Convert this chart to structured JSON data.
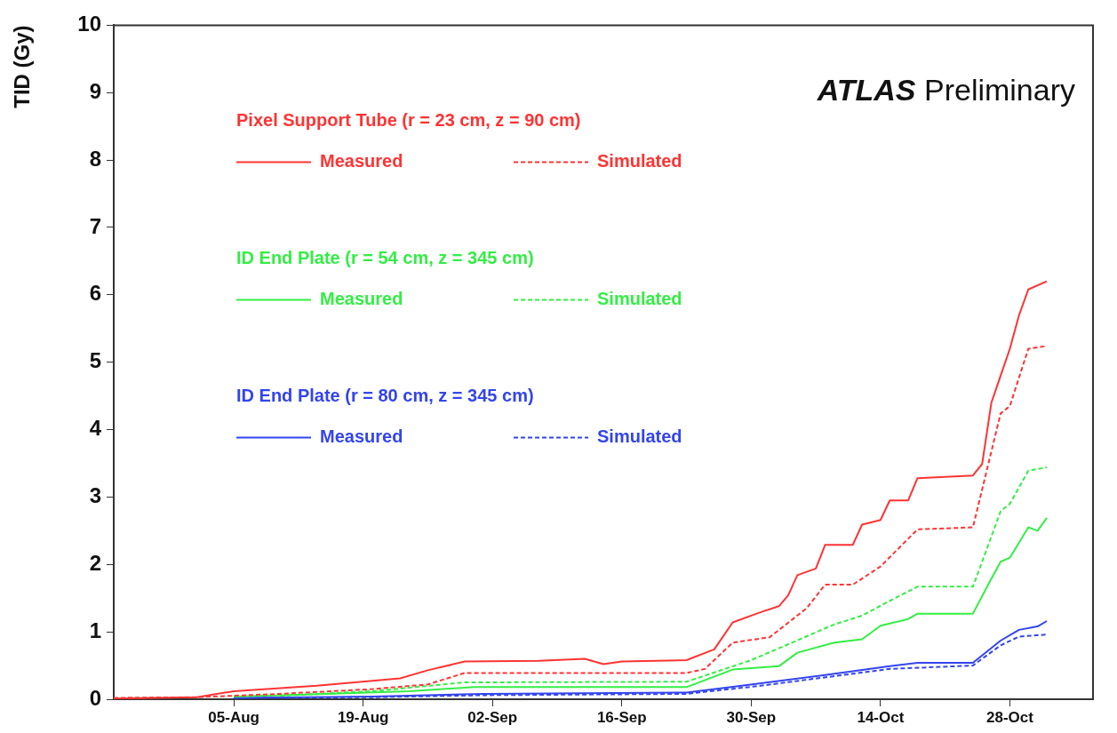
{
  "chart_data": {
    "type": "line",
    "ylabel": "TID (Gy)",
    "xlim": [
      "--07-23",
      "--11-06"
    ],
    "xticks": [
      {
        "value": "--08-05",
        "label": "05-Aug"
      },
      {
        "value": "--08-19",
        "label": "19-Aug"
      },
      {
        "value": "--09-02",
        "label": "02-Sep"
      },
      {
        "value": "--09-16",
        "label": "16-Sep"
      },
      {
        "value": "--09-30",
        "label": "30-Sep"
      },
      {
        "value": "--10-14",
        "label": "14-Oct"
      },
      {
        "value": "--10-28",
        "label": "28-Oct"
      }
    ],
    "ylim": [
      0,
      10
    ],
    "yticks": [
      0,
      1,
      2,
      3,
      4,
      5,
      6,
      7,
      8,
      9,
      10
    ],
    "grid": false,
    "legend": "top left",
    "marker": "none",
    "annotations": [
      "ATLAS Preliminary",
      "Pixel Support Tube (r = 23 cm, z = 90 cm)",
      "ID End Plate (r = 54 cm, z = 345 cm)",
      "ID End Plate (r = 80 cm, z = 345 cm)"
    ],
    "series": [
      {
        "name": "Measured",
        "color": "#ff3333",
        "line_style": "solid",
        "x": [
          "--07-23",
          "--08-01",
          "--08-05",
          "--08-14",
          "--08-23",
          "--08-26",
          "--08-30",
          "--09-07",
          "--09-12",
          "--09-14",
          "--09-16",
          "--09-23",
          "--09-26",
          "--09-28",
          "--10-01",
          "--10-03",
          "--10-04",
          "--10-05",
          "--10-07",
          "--10-08",
          "--10-11",
          "--10-12",
          "--10-14",
          "--10-15",
          "--10-17",
          "--10-18",
          "--10-24",
          "--10-25",
          "--10-26",
          "--10-27",
          "--10-28",
          "--10-29",
          "--10-30",
          "--11-01"
        ],
        "values": [
          0.01,
          0.03,
          0.12,
          0.2,
          0.31,
          0.43,
          0.56,
          0.57,
          0.6,
          0.52,
          0.56,
          0.58,
          0.74,
          1.14,
          1.29,
          1.38,
          1.54,
          1.84,
          1.94,
          2.29,
          2.29,
          2.59,
          2.66,
          2.95,
          2.95,
          3.28,
          3.32,
          3.49,
          4.4,
          4.8,
          5.2,
          5.7,
          6.08,
          6.2
        ]
      },
      {
        "name": "Simulated",
        "color": "#ff3333",
        "line_style": "dashed",
        "x": [
          "--07-23",
          "--08-01",
          "--08-10",
          "--08-20",
          "--08-26",
          "--08-30",
          "--09-23",
          "--09-25",
          "--09-28",
          "--10-02",
          "--10-06",
          "--10-08",
          "--10-11",
          "--10-14",
          "--10-18",
          "--10-24",
          "--10-27",
          "--10-28",
          "--10-30",
          "--11-01"
        ],
        "values": [
          0.02,
          0.03,
          0.08,
          0.15,
          0.22,
          0.39,
          0.39,
          0.45,
          0.84,
          0.92,
          1.35,
          1.7,
          1.7,
          1.97,
          2.52,
          2.55,
          4.24,
          4.35,
          5.2,
          5.24
        ]
      },
      {
        "name": "Measured",
        "color": "#33ee44",
        "line_style": "solid",
        "x": [
          "--08-05",
          "--08-15",
          "--08-24",
          "--08-31",
          "--09-23",
          "--09-28",
          "--10-03",
          "--10-05",
          "--10-09",
          "--10-12",
          "--10-14",
          "--10-17",
          "--10-18",
          "--10-24",
          "--10-26",
          "--10-27",
          "--10-28",
          "--10-30",
          "--10-31",
          "--11-01"
        ],
        "values": [
          0.04,
          0.08,
          0.12,
          0.18,
          0.18,
          0.44,
          0.49,
          0.69,
          0.84,
          0.89,
          1.09,
          1.19,
          1.27,
          1.27,
          1.79,
          2.04,
          2.1,
          2.55,
          2.5,
          2.69
        ]
      },
      {
        "name": "Simulated",
        "color": "#33ee44",
        "line_style": "dashed",
        "x": [
          "--08-10",
          "--08-20",
          "--08-30",
          "--09-23",
          "--09-30",
          "--10-09",
          "--10-12",
          "--10-15",
          "--10-18",
          "--10-24",
          "--10-25",
          "--10-27",
          "--10-28",
          "--10-30",
          "--11-01"
        ],
        "values": [
          0.05,
          0.12,
          0.25,
          0.26,
          0.58,
          1.11,
          1.24,
          1.46,
          1.67,
          1.67,
          2.04,
          2.79,
          2.9,
          3.39,
          3.44
        ]
      },
      {
        "name": "Measured",
        "color": "#3344ee",
        "line_style": "solid",
        "x": [
          "--08-05",
          "--08-20",
          "--09-01",
          "--09-23",
          "--09-29",
          "--10-08",
          "--10-15",
          "--10-18",
          "--10-24",
          "--10-27",
          "--10-29",
          "--10-31",
          "--11-01"
        ],
        "values": [
          0.02,
          0.04,
          0.08,
          0.1,
          0.2,
          0.36,
          0.49,
          0.54,
          0.54,
          0.87,
          1.03,
          1.08,
          1.16
        ]
      },
      {
        "name": "Simulated",
        "color": "#3344ee",
        "line_style": "dashed",
        "x": [
          "--08-05",
          "--08-20",
          "--09-01",
          "--09-23",
          "--10-01",
          "--10-15",
          "--10-24",
          "--10-27",
          "--10-29",
          "--11-01"
        ],
        "values": [
          0.02,
          0.03,
          0.06,
          0.08,
          0.2,
          0.45,
          0.5,
          0.8,
          0.93,
          0.96
        ]
      }
    ]
  }
}
